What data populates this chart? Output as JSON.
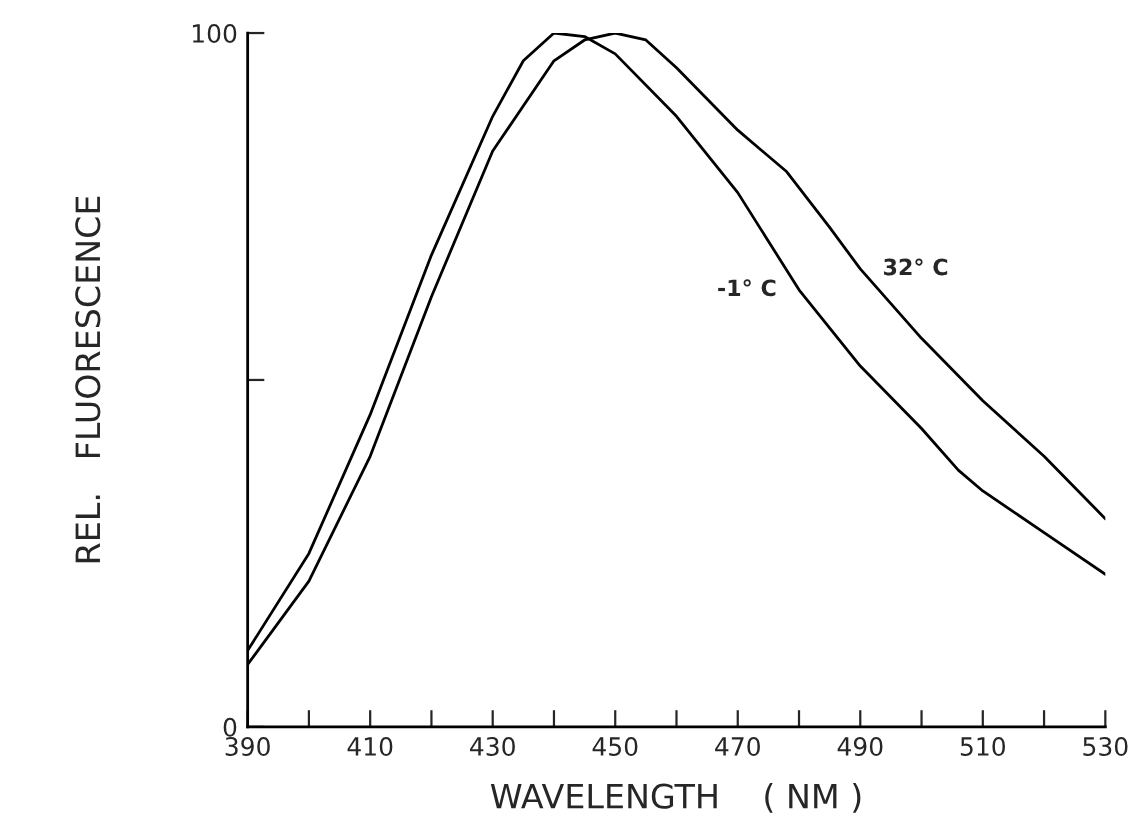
{
  "chart_data": {
    "type": "line",
    "xlabel": "WAVELENGTH    ( NM )",
    "ylabel": "REL.   FLUORESCENCE",
    "xlim": [
      390,
      530
    ],
    "xticks": [
      390,
      {
        "value": 400,
        "label": null
      },
      410,
      {
        "value": 420,
        "label": null
      },
      430,
      {
        "value": 440,
        "label": null
      },
      450,
      {
        "value": 460,
        "label": null
      },
      470,
      {
        "value": 480,
        "label": null
      },
      490,
      {
        "value": 500,
        "label": null
      },
      510,
      {
        "value": 520,
        "label": null
      },
      530
    ],
    "ylim": [
      0,
      100
    ],
    "yticks": [
      0,
      {
        "value": 50,
        "label": null
      },
      100
    ],
    "grid": false,
    "legend": false,
    "marker": "none",
    "line_style": "solid",
    "series": [
      {
        "name": "-1° C",
        "color": "#000000",
        "x": [
          390,
          400,
          410,
          420,
          430,
          435,
          440,
          445,
          450,
          460,
          470,
          480,
          490,
          500,
          506,
          510,
          520,
          530
        ],
        "values": [
          11,
          25,
          45,
          68,
          88,
          96,
          100,
          99.5,
          97,
          88,
          77,
          63,
          52,
          43,
          37,
          34,
          28,
          22
        ]
      },
      {
        "name": "32° C",
        "color": "#000000",
        "x": [
          390,
          400,
          410,
          420,
          430,
          440,
          445,
          450,
          455,
          460,
          470,
          478,
          485,
          490,
          500,
          510,
          520,
          530
        ],
        "values": [
          9,
          21,
          39,
          62,
          83,
          96,
          99,
          100,
          99,
          95,
          86,
          80,
          72,
          66,
          56,
          47,
          39,
          30
        ]
      }
    ]
  }
}
